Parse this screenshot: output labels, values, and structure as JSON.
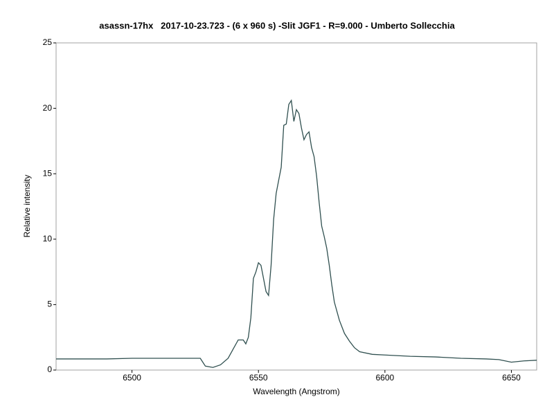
{
  "chart_data": {
    "type": "line",
    "title": "asassn-17hx   2017-10-23.723 - (6 x 960 s) -Slit JGF1 - R=9.000 - Umberto Sollecchia",
    "x_label": "Wavelength (Angstrom)",
    "y_label": "Relative intensity",
    "xlim": [
      6470,
      6660
    ],
    "xticks": [
      6500,
      6550,
      6600,
      6650
    ],
    "ylim": [
      0,
      25
    ],
    "yticks": [
      0,
      5,
      10,
      15,
      20,
      25
    ],
    "grid": false,
    "series": [
      {
        "color": "#2f4f4f",
        "x": [
          6470,
          6480,
          6490,
          6500,
          6510,
          6520,
          6527,
          6528,
          6529,
          6532,
          6535,
          6538,
          6540,
          6542,
          6544,
          6545,
          6546,
          6547,
          6548,
          6549,
          6550,
          6551,
          6552,
          6553,
          6554,
          6555,
          6556,
          6557,
          6558,
          6559,
          6560,
          6561,
          6562,
          6563,
          6564,
          6565,
          6566,
          6567,
          6568,
          6569,
          6570,
          6571,
          6572,
          6573,
          6574,
          6575,
          6576,
          6577,
          6578,
          6579,
          6580,
          6582,
          6584,
          6586,
          6588,
          6590,
          6595,
          6600,
          6610,
          6620,
          6630,
          6640,
          6645,
          6650,
          6655,
          6660
        ],
        "values": [
          0.85,
          0.85,
          0.85,
          0.9,
          0.9,
          0.9,
          0.9,
          0.6,
          0.3,
          0.2,
          0.4,
          0.9,
          1.6,
          2.3,
          2.3,
          2.0,
          2.5,
          4.0,
          7.0,
          7.5,
          8.2,
          8.0,
          7.0,
          6.0,
          5.7,
          8.0,
          11.5,
          13.5,
          14.5,
          15.5,
          18.7,
          18.8,
          20.3,
          20.6,
          19.0,
          19.9,
          19.6,
          18.5,
          17.6,
          18.0,
          18.2,
          17.0,
          16.3,
          14.8,
          12.8,
          11.0,
          10.2,
          9.3,
          8.0,
          6.5,
          5.2,
          3.8,
          2.8,
          2.2,
          1.7,
          1.4,
          1.2,
          1.15,
          1.05,
          1.0,
          0.9,
          0.85,
          0.8,
          0.6,
          0.7,
          0.75
        ]
      }
    ]
  }
}
